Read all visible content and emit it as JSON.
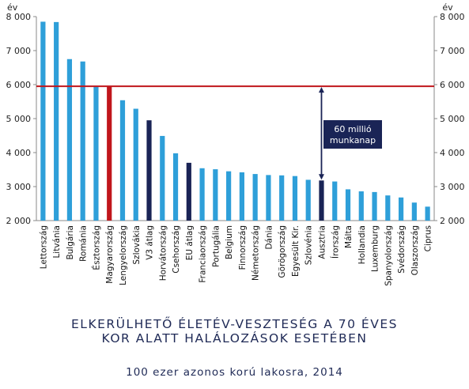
{
  "chart_data": {
    "type": "bar",
    "title_line1": "ELKERÜLHETŐ ÉLETÉV-VESZTESÉG A 70 ÉVES",
    "title_line2": "KOR ALATT HALÁLOZÁSOK ESETÉBEN",
    "subtitle": "100 ezer azonos korú lakosra, 2014",
    "y_unit_left": "év",
    "y_unit_right": "év",
    "ylim": [
      2000,
      8000
    ],
    "yticks": [
      2000,
      3000,
      4000,
      5000,
      6000,
      7000,
      8000
    ],
    "ytick_labels": [
      "2 000",
      "3 000",
      "4 000",
      "5 000",
      "6 000",
      "7 000",
      "8 000"
    ],
    "grid": false,
    "categories": [
      "Lettország",
      "Litvánia",
      "Bulgária",
      "Románia",
      "Észtország",
      "Magyarország",
      "Lengyelország",
      "Szlovákia",
      "V3 átlag",
      "Horvátország",
      "Csehország",
      "EU átlag",
      "Franciaország",
      "Portugália",
      "Belgium",
      "Finnország",
      "Németország",
      "Dánia",
      "Görögország",
      "Egyesült Kir.",
      "Szlovénia",
      "Ausztria",
      "Írország",
      "Málta",
      "Hollandia",
      "Luxemburg",
      "Spanyolország",
      "Svédország",
      "Olaszország",
      "Ciprus"
    ],
    "values": [
      7850,
      7840,
      6750,
      6680,
      5950,
      5950,
      5540,
      5290,
      4950,
      4490,
      3980,
      3700,
      3540,
      3510,
      3450,
      3420,
      3370,
      3340,
      3330,
      3310,
      3200,
      3180,
      3150,
      2920,
      2860,
      2840,
      2740,
      2680,
      2530,
      2410
    ],
    "bar_colors": [
      "#2e9fd9",
      "#2e9fd9",
      "#2e9fd9",
      "#2e9fd9",
      "#2e9fd9",
      "#c0161c",
      "#2e9fd9",
      "#2e9fd9",
      "#1a2456",
      "#2e9fd9",
      "#2e9fd9",
      "#1a2456",
      "#2e9fd9",
      "#2e9fd9",
      "#2e9fd9",
      "#2e9fd9",
      "#2e9fd9",
      "#2e9fd9",
      "#2e9fd9",
      "#2e9fd9",
      "#2e9fd9",
      "#1a2456",
      "#2e9fd9",
      "#2e9fd9",
      "#2e9fd9",
      "#2e9fd9",
      "#2e9fd9",
      "#2e9fd9",
      "#2e9fd9",
      "#2e9fd9"
    ],
    "reference_line": {
      "value": 5950,
      "color": "#c0161c"
    },
    "annotation": {
      "line1": "60 millió",
      "line2": "munkanap",
      "from_value": 5950,
      "to_value": 3180,
      "at_category": "Ausztria",
      "box_color": "#1a2456"
    }
  }
}
